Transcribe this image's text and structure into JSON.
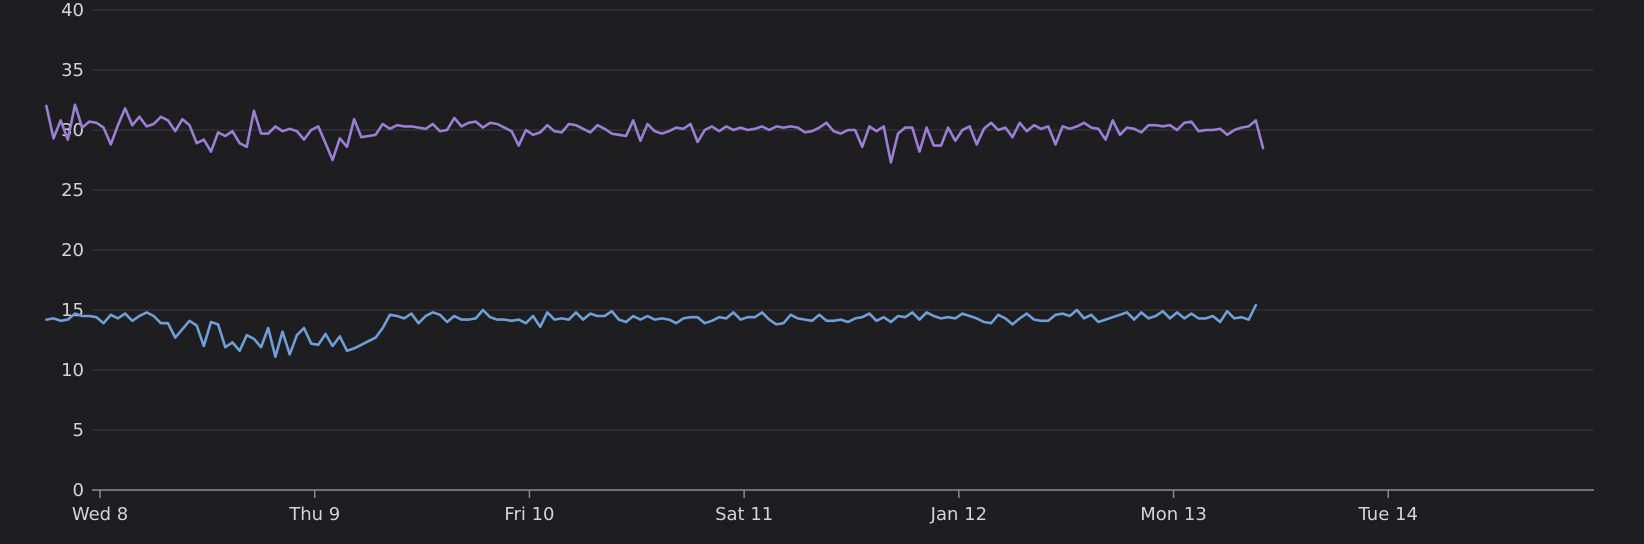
{
  "chart_data": {
    "type": "line",
    "title": "",
    "xlabel": "",
    "ylabel": "",
    "ylim": [
      0,
      40
    ],
    "y_ticks": [
      "0",
      "5",
      "10",
      "15",
      "20",
      "25",
      "30",
      "35",
      "40"
    ],
    "x_range_hours": [
      -0.9,
      167
    ],
    "x_ticks": [
      {
        "label": "Wed 8",
        "hour": 0
      },
      {
        "label": "Thu 9",
        "hour": 24
      },
      {
        "label": "Fri 10",
        "hour": 48
      },
      {
        "label": "Sat 11",
        "hour": 72
      },
      {
        "label": "Jan 12",
        "hour": 96
      },
      {
        "label": "Mon 13",
        "hour": 120
      },
      {
        "label": "Tue 14",
        "hour": 144
      }
    ],
    "grid": true,
    "legend": "none",
    "x_start_hour": -6,
    "x_step_hours": 0.8,
    "series": [
      {
        "color": "#9b7fd4",
        "values": [
          32,
          29.3,
          30.8,
          29.2,
          32.1,
          30.2,
          30.7,
          30.6,
          30.2,
          28.8,
          30.4,
          31.8,
          30.4,
          31.1,
          30.3,
          30.5,
          31.1,
          30.8,
          29.9,
          30.9,
          30.4,
          28.9,
          29.2,
          28.2,
          29.8,
          29.5,
          29.9,
          28.9,
          28.6,
          31.6,
          29.7,
          29.7,
          30.3,
          29.9,
          30.1,
          29.9,
          29.2,
          30.0,
          30.3,
          28.9,
          27.5,
          29.3,
          28.6,
          30.9,
          29.4,
          29.5,
          29.6,
          30.5,
          30.1,
          30.4,
          30.3,
          30.3,
          30.2,
          30.1,
          30.5,
          29.9,
          30.0,
          31.0,
          30.3,
          30.6,
          30.7,
          30.2,
          30.6,
          30.5,
          30.2,
          29.9,
          28.7,
          30.0,
          29.6,
          29.8,
          30.4,
          29.9,
          29.8,
          30.5,
          30.4,
          30.1,
          29.8,
          30.4,
          30.1,
          29.7,
          29.6,
          29.5,
          30.8,
          29.1,
          30.5,
          29.9,
          29.7,
          29.9,
          30.2,
          30.1,
          30.5,
          29.0,
          30.0,
          30.3,
          29.9,
          30.3,
          30.0,
          30.2,
          30.0,
          30.1,
          30.3,
          30.0,
          30.3,
          30.2,
          30.3,
          30.2,
          29.8,
          29.9,
          30.2,
          30.6,
          29.9,
          29.7,
          30.0,
          30.0,
          28.6,
          30.3,
          29.9,
          30.3,
          27.3,
          29.7,
          30.2,
          30.2,
          28.2,
          30.2,
          28.7,
          28.7,
          30.2,
          29.1,
          30.0,
          30.3,
          28.8,
          30.1,
          30.6,
          30.0,
          30.2,
          29.4,
          30.6,
          29.9,
          30.4,
          30.1,
          30.3,
          28.8,
          30.3,
          30.1,
          30.3,
          30.6,
          30.2,
          30.1,
          29.2,
          30.8,
          29.6,
          30.2,
          30.1,
          29.8,
          30.4,
          30.4,
          30.3,
          30.4,
          30.0,
          30.6,
          30.7,
          29.9,
          30.0,
          30.0,
          30.1,
          29.6,
          30.0,
          30.2,
          30.3,
          30.8,
          28.5
        ]
      },
      {
        "color": "#6f9fd6",
        "values": [
          14.2,
          14.3,
          14.1,
          14.2,
          14.7,
          14.5,
          14.5,
          14.4,
          13.9,
          14.6,
          14.3,
          14.7,
          14.1,
          14.5,
          14.8,
          14.5,
          13.9,
          13.9,
          12.7,
          13.4,
          14.1,
          13.7,
          12.0,
          14.0,
          13.8,
          11.9,
          12.3,
          11.6,
          12.9,
          12.6,
          11.9,
          13.5,
          11.1,
          13.2,
          11.3,
          12.9,
          13.5,
          12.2,
          12.1,
          13.0,
          12.0,
          12.8,
          11.6,
          11.8,
          12.1,
          12.4,
          12.7,
          13.5,
          14.6,
          14.5,
          14.3,
          14.7,
          13.9,
          14.5,
          14.8,
          14.6,
          14.0,
          14.5,
          14.2,
          14.2,
          14.3,
          15.0,
          14.4,
          14.2,
          14.2,
          14.1,
          14.2,
          13.9,
          14.5,
          13.6,
          14.8,
          14.2,
          14.3,
          14.2,
          14.8,
          14.2,
          14.7,
          14.5,
          14.5,
          14.9,
          14.2,
          14.0,
          14.5,
          14.2,
          14.5,
          14.2,
          14.3,
          14.2,
          13.9,
          14.3,
          14.4,
          14.4,
          13.9,
          14.1,
          14.4,
          14.3,
          14.8,
          14.2,
          14.4,
          14.4,
          14.8,
          14.2,
          13.8,
          13.9,
          14.6,
          14.3,
          14.2,
          14.1,
          14.6,
          14.1,
          14.1,
          14.2,
          14.0,
          14.3,
          14.4,
          14.7,
          14.1,
          14.4,
          14.0,
          14.5,
          14.4,
          14.8,
          14.2,
          14.8,
          14.5,
          14.3,
          14.4,
          14.3,
          14.7,
          14.5,
          14.3,
          14.0,
          13.9,
          14.6,
          14.3,
          13.8,
          14.3,
          14.7,
          14.2,
          14.1,
          14.1,
          14.6,
          14.7,
          14.5,
          15.0,
          14.3,
          14.6,
          14.0,
          14.2,
          14.4,
          14.6,
          14.8,
          14.2,
          14.8,
          14.3,
          14.5,
          14.9,
          14.3,
          14.8,
          14.3,
          14.7,
          14.3,
          14.3,
          14.5,
          14.0,
          14.9,
          14.3,
          14.4,
          14.2,
          15.4
        ]
      }
    ]
  }
}
